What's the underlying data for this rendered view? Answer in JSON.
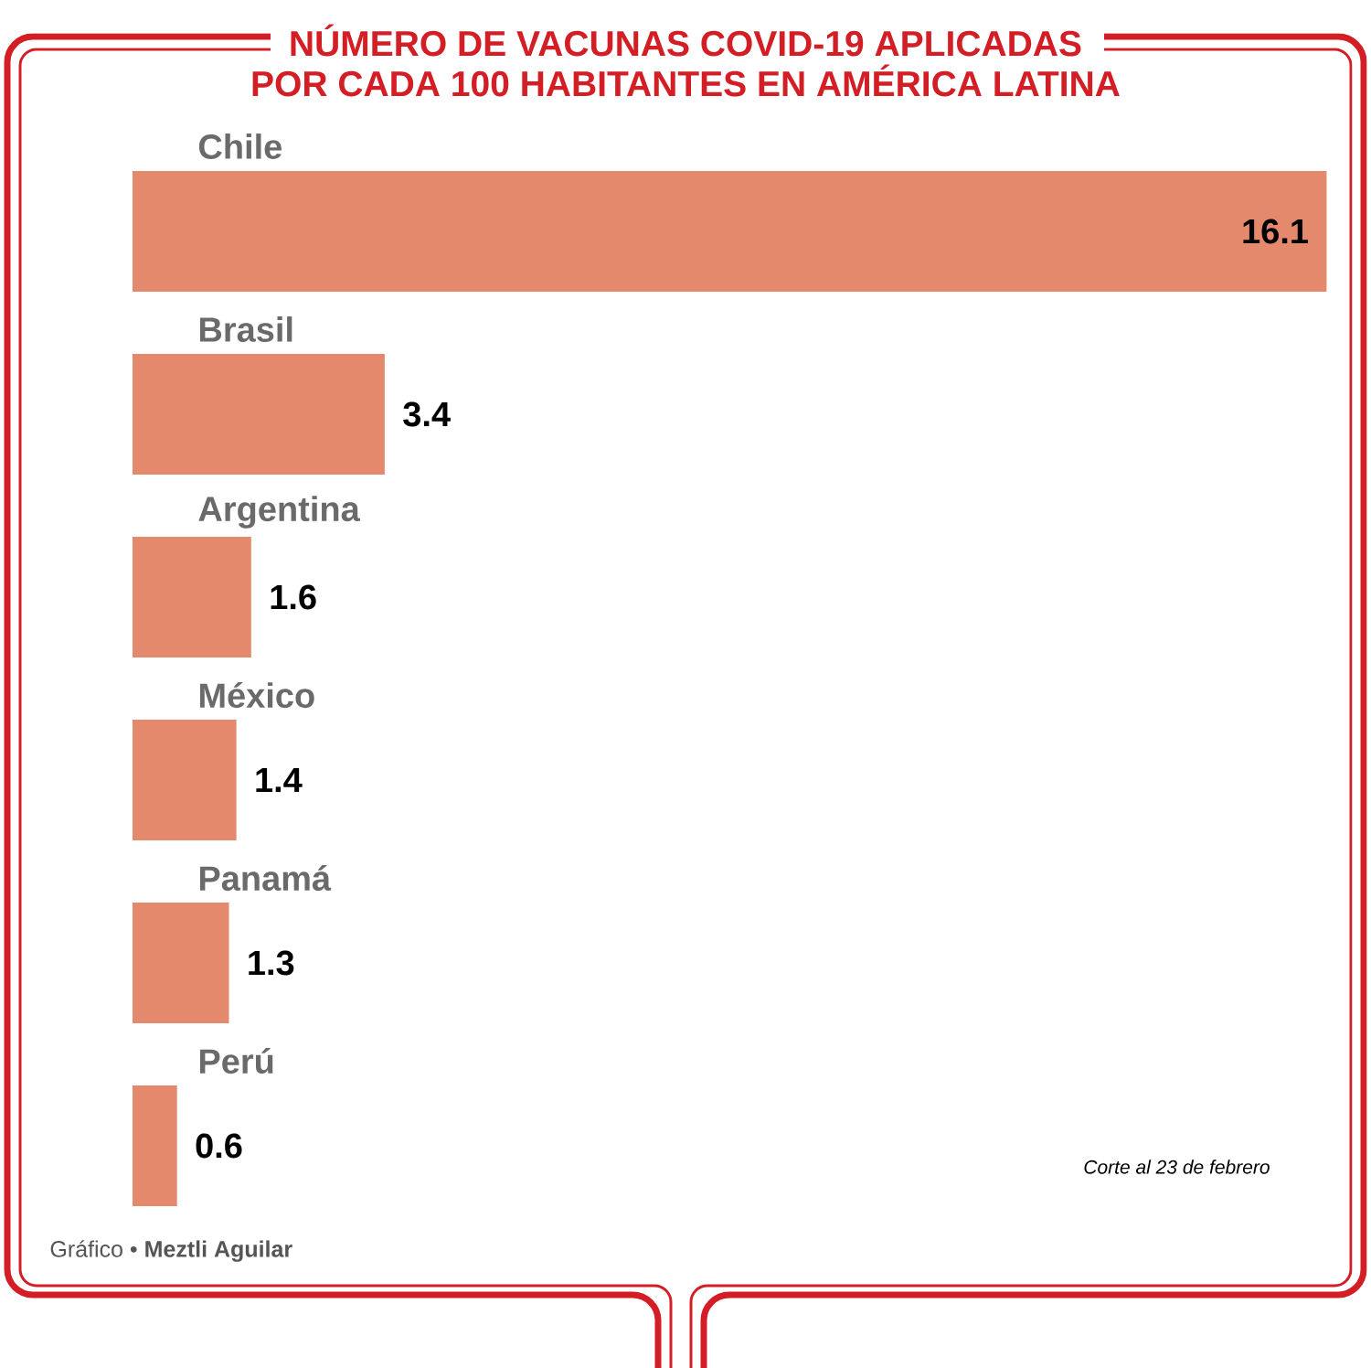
{
  "chart_data": {
    "type": "bar",
    "orientation": "horizontal",
    "title": "NÚMERO DE VACUNAS COVID-19 APLICADAS POR CADA 100 HABITANTES EN AMÉRICA LATINA",
    "categories": [
      "Chile",
      "Brasil",
      "Argentina",
      "México",
      "Panamá",
      "Perú"
    ],
    "values": [
      16.1,
      3.4,
      1.6,
      1.4,
      1.3,
      0.6
    ],
    "color": "#e5896d",
    "data_labels": true,
    "annotations": [
      "Corte al 23 de febrero",
      "Gráfico • **Meztli Aguilar**"
    ]
  }
}
